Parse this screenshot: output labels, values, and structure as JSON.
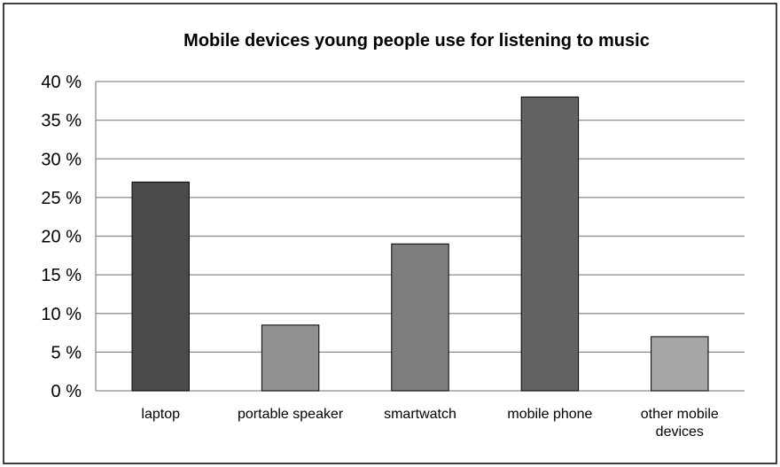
{
  "chart_data": {
    "type": "bar",
    "title": "Mobile devices young people use for listening to music",
    "xlabel": "",
    "ylabel": "",
    "categories": [
      [
        "laptop"
      ],
      [
        "portable speaker"
      ],
      [
        "smartwatch"
      ],
      [
        "mobile phone"
      ],
      [
        "other mobile",
        "devices"
      ]
    ],
    "values": [
      27,
      8.5,
      19,
      38,
      7
    ],
    "bar_colors": [
      "#4a4a4a",
      "#909090",
      "#7d7d7d",
      "#636363",
      "#a6a6a6"
    ],
    "ylim": [
      0,
      40
    ],
    "yticks": [
      0,
      5,
      10,
      15,
      20,
      25,
      30,
      35,
      40
    ],
    "ytick_labels": [
      "0 %",
      "5 %",
      "10 %",
      "15 %",
      "20 %",
      "25 %",
      "30 %",
      "35 %",
      "40 %"
    ],
    "grid": true,
    "legend": "none"
  }
}
